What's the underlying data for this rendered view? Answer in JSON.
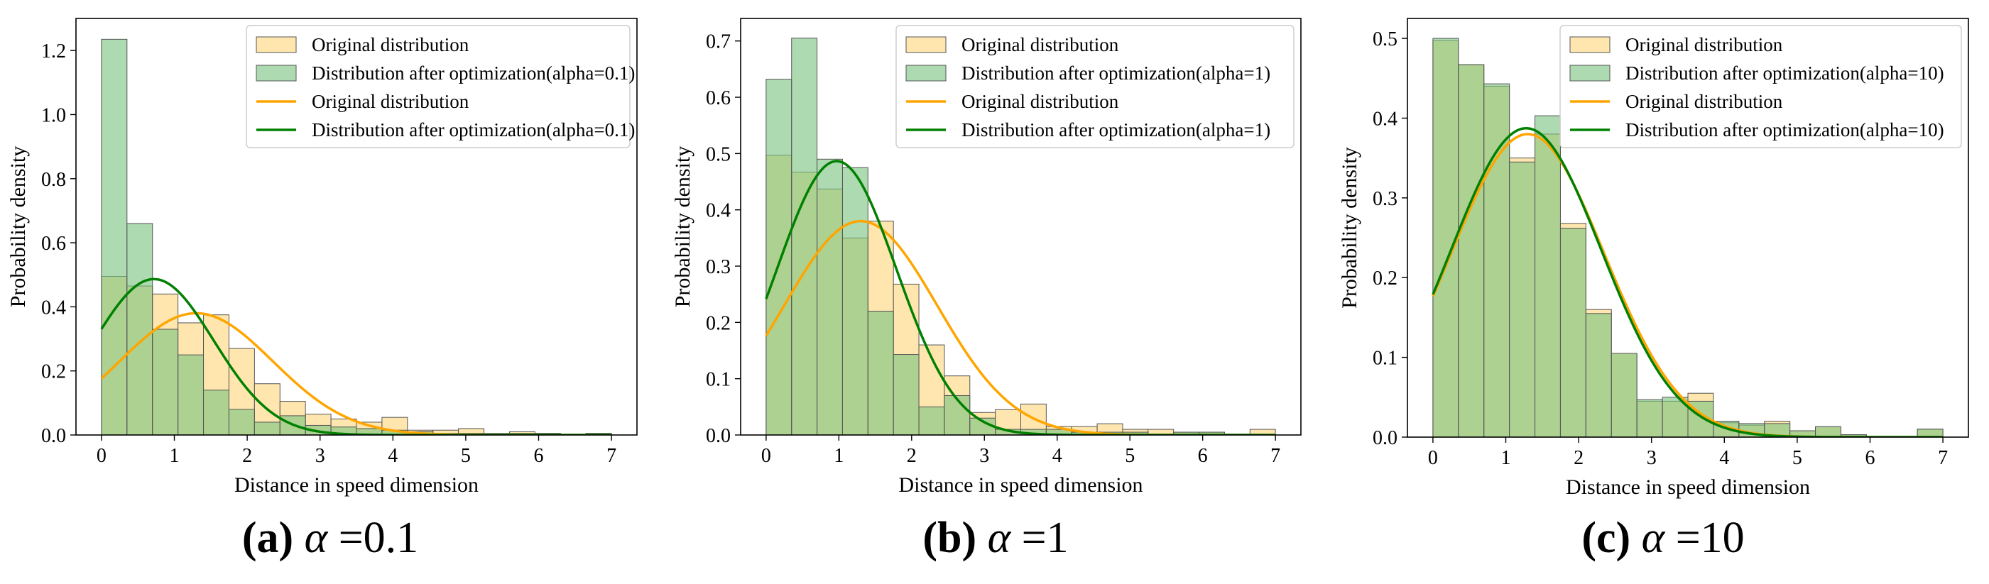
{
  "colors": {
    "original": "#FFA500",
    "original_fill": "#FFE3A6",
    "optimized": "#008000",
    "optimized_fill": "#7BC47F",
    "bar_edge": "#555555"
  },
  "chart_data": [
    {
      "type": "histogram+line",
      "caption": {
        "letter": "(a)",
        "alpha_symbol": "α",
        "eq": "=0.1"
      },
      "xlabel": "Distance in speed dimension",
      "ylabel": "Probability density",
      "xlim": [
        -0.35,
        7.35
      ],
      "ylim": [
        0,
        1.3
      ],
      "xticks": [
        0,
        1,
        2,
        3,
        4,
        5,
        6,
        7
      ],
      "yticks": [
        0.0,
        0.2,
        0.4,
        0.6,
        0.8,
        1.0,
        1.2
      ],
      "ytick_labels": [
        "0.0",
        "0.2",
        "0.4",
        "0.6",
        "0.8",
        "1.0",
        "1.2"
      ],
      "bin_edges": [
        0,
        0.35,
        0.7,
        1.05,
        1.4,
        1.75,
        2.1,
        2.45,
        2.8,
        3.15,
        3.5,
        3.85,
        4.2,
        4.55,
        4.9,
        5.25,
        5.6,
        5.95,
        6.3,
        6.65,
        7.0
      ],
      "legend": [
        "Original distribution",
        "Distribution after optimization(alpha=0.1)",
        "Original distribution",
        "Distribution after optimization(alpha=0.1)"
      ],
      "legend_position": "top-right",
      "series": [
        {
          "name": "Original distribution",
          "kind": "hist",
          "values": [
            0.495,
            0.465,
            0.44,
            0.35,
            0.375,
            0.27,
            0.16,
            0.105,
            0.065,
            0.05,
            0.04,
            0.055,
            0.015,
            0.015,
            0.02,
            0.005,
            0.01,
            0.005,
            0.0,
            0.005
          ]
        },
        {
          "name": "Distribution after optimization(alpha=0.1)",
          "kind": "hist",
          "values": [
            1.235,
            0.66,
            0.33,
            0.25,
            0.14,
            0.08,
            0.04,
            0.06,
            0.03,
            0.025,
            0.02,
            0.015,
            0.01,
            0.005,
            0.005,
            0.0,
            0.005,
            0.005,
            0.0,
            0.005
          ]
        },
        {
          "name": "Original distribution",
          "kind": "gauss",
          "mean": 1.3,
          "sd": 1.05
        },
        {
          "name": "Distribution after optimization(alpha=0.1)",
          "kind": "gauss",
          "mean": 0.72,
          "sd": 0.82
        }
      ]
    },
    {
      "type": "histogram+line",
      "caption": {
        "letter": "(b)",
        "alpha_symbol": "α",
        "eq": "=1"
      },
      "xlabel": "Distance in speed dimension",
      "ylabel": "Probability density",
      "xlim": [
        -0.35,
        7.35
      ],
      "ylim": [
        0,
        0.74
      ],
      "xticks": [
        0,
        1,
        2,
        3,
        4,
        5,
        6,
        7
      ],
      "yticks": [
        0.0,
        0.1,
        0.2,
        0.3,
        0.4,
        0.5,
        0.6,
        0.7
      ],
      "ytick_labels": [
        "0.0",
        "0.1",
        "0.2",
        "0.3",
        "0.4",
        "0.5",
        "0.6",
        "0.7"
      ],
      "bin_edges": [
        0,
        0.35,
        0.7,
        1.05,
        1.4,
        1.75,
        2.1,
        2.45,
        2.8,
        3.15,
        3.5,
        3.85,
        4.2,
        4.55,
        4.9,
        5.25,
        5.6,
        5.95,
        6.3,
        6.65,
        7.0
      ],
      "legend": [
        "Original distribution",
        "Distribution after optimization(alpha=1)",
        "Original distribution",
        "Distribution after optimization(alpha=1)"
      ],
      "legend_position": "top-right",
      "series": [
        {
          "name": "Original distribution",
          "kind": "hist",
          "values": [
            0.497,
            0.467,
            0.437,
            0.35,
            0.38,
            0.268,
            0.16,
            0.105,
            0.04,
            0.045,
            0.055,
            0.015,
            0.015,
            0.02,
            0.01,
            0.01,
            0.005,
            0.005,
            0.0,
            0.01
          ]
        },
        {
          "name": "Distribution after optimization(alpha=1)",
          "kind": "hist",
          "values": [
            0.632,
            0.705,
            0.49,
            0.475,
            0.22,
            0.143,
            0.05,
            0.07,
            0.03,
            0.01,
            0.01,
            0.01,
            0.005,
            0.005,
            0.005,
            0.0,
            0.005,
            0.005,
            0.0,
            0.0
          ]
        },
        {
          "name": "Original distribution",
          "kind": "gauss",
          "mean": 1.3,
          "sd": 1.05
        },
        {
          "name": "Distribution after optimization(alpha=1)",
          "kind": "gauss",
          "mean": 0.97,
          "sd": 0.82
        }
      ]
    },
    {
      "type": "histogram+line",
      "caption": {
        "letter": "(c)",
        "alpha_symbol": "α",
        "eq": "=10"
      },
      "xlabel": "Distance in speed dimension",
      "ylabel": "Probability density",
      "xlim": [
        -0.35,
        7.35
      ],
      "ylim": [
        0,
        0.525
      ],
      "xticks": [
        0,
        1,
        2,
        3,
        4,
        5,
        6,
        7
      ],
      "yticks": [
        0.0,
        0.1,
        0.2,
        0.3,
        0.4,
        0.5
      ],
      "ytick_labels": [
        "0.0",
        "0.1",
        "0.2",
        "0.3",
        "0.4",
        "0.5"
      ],
      "bin_edges": [
        0,
        0.35,
        0.7,
        1.05,
        1.4,
        1.75,
        2.1,
        2.45,
        2.8,
        3.15,
        3.5,
        3.85,
        4.2,
        4.55,
        4.9,
        5.25,
        5.6,
        5.95,
        6.3,
        6.65,
        7.0
      ],
      "legend": [
        "Original distribution",
        "Distribution after optimization(alpha=10)",
        "Original distribution",
        "Distribution after optimization(alpha=10)"
      ],
      "legend_position": "top-right",
      "series": [
        {
          "name": "Original distribution",
          "kind": "hist",
          "values": [
            0.497,
            0.467,
            0.44,
            0.35,
            0.38,
            0.268,
            0.16,
            0.105,
            0.045,
            0.045,
            0.055,
            0.018,
            0.015,
            0.02,
            0.008,
            0.013,
            0.003,
            0.0,
            0.0,
            0.01
          ]
        },
        {
          "name": "Distribution after optimization(alpha=10)",
          "kind": "hist",
          "values": [
            0.5,
            0.467,
            0.443,
            0.345,
            0.403,
            0.262,
            0.155,
            0.105,
            0.047,
            0.05,
            0.045,
            0.02,
            0.017,
            0.017,
            0.008,
            0.013,
            0.003,
            0.0,
            0.0,
            0.01
          ]
        },
        {
          "name": "Original distribution",
          "kind": "gauss",
          "mean": 1.3,
          "sd": 1.05
        },
        {
          "name": "Distribution after optimization(alpha=10)",
          "kind": "gauss",
          "mean": 1.28,
          "sd": 1.03
        }
      ]
    }
  ]
}
